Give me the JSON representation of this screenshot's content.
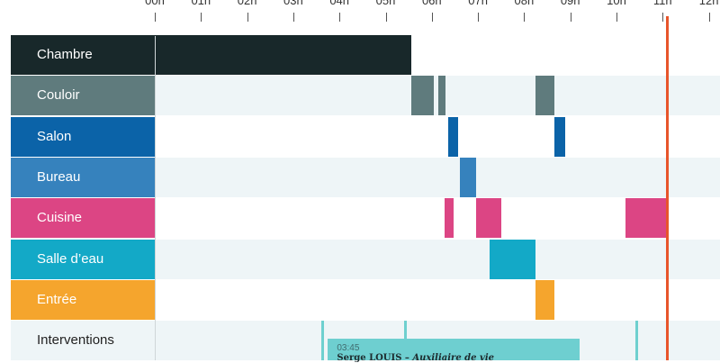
{
  "axis": {
    "hours": [
      "00h",
      "01h",
      "02h",
      "03h",
      "04h",
      "05h",
      "06h",
      "07h",
      "08h",
      "09h",
      "10h",
      "11h",
      "12h"
    ]
  },
  "now_hour": 11.1,
  "rows": [
    {
      "id": "chambre",
      "label": "Chambre",
      "color": "#18282a",
      "text_color": "#ffffff",
      "band": "#ffffff",
      "segments": [
        [
          0,
          5.55
        ]
      ]
    },
    {
      "id": "couloir",
      "label": "Couloir",
      "color": "#5f7b7d",
      "text_color": "#ffffff",
      "band": "#eef5f7",
      "segments": [
        [
          5.55,
          6.05
        ],
        [
          6.15,
          6.3
        ],
        [
          8.25,
          8.65
        ]
      ]
    },
    {
      "id": "salon",
      "label": "Salon",
      "color": "#0b63a8",
      "text_color": "#ffffff",
      "band": "#ffffff",
      "segments": [
        [
          6.35,
          6.57
        ],
        [
          8.65,
          8.88
        ]
      ]
    },
    {
      "id": "bureau",
      "label": "Bureau",
      "color": "#3682bd",
      "text_color": "#ffffff",
      "band": "#eef5f7",
      "segments": [
        [
          6.6,
          6.95
        ]
      ]
    },
    {
      "id": "cuisine",
      "label": "Cuisine",
      "color": "#dc4584",
      "text_color": "#ffffff",
      "band": "#ffffff",
      "segments": [
        [
          6.28,
          6.47
        ],
        [
          6.95,
          7.5
        ],
        [
          10.2,
          11.1
        ]
      ]
    },
    {
      "id": "salle-d-eau",
      "label": "Salle d’eau",
      "color": "#13a9c7",
      "text_color": "#ffffff",
      "band": "#eef5f7",
      "segments": [
        [
          7.25,
          8.25
        ]
      ]
    },
    {
      "id": "entree",
      "label": "Entrée",
      "color": "#f5a52d",
      "text_color": "#ffffff",
      "band": "#ffffff",
      "segments": [
        [
          8.25,
          8.65
        ]
      ]
    },
    {
      "id": "interventions",
      "label": "Interventions",
      "color": "#eef5f7",
      "text_color": "#222222",
      "band": "#eef5f7",
      "segments": []
    }
  ],
  "interventions": {
    "lines_hours": [
      3.6,
      5.4,
      10.4
    ],
    "card": {
      "start_hour": 3.75,
      "end_hour": 9.2,
      "time": "03:45",
      "name": "Serge LOUIS",
      "sep": " – ",
      "role": "Auxiliaire de vie"
    }
  },
  "colors": {
    "now_line": "#e8552b",
    "intervention": "#6ed0cf"
  }
}
